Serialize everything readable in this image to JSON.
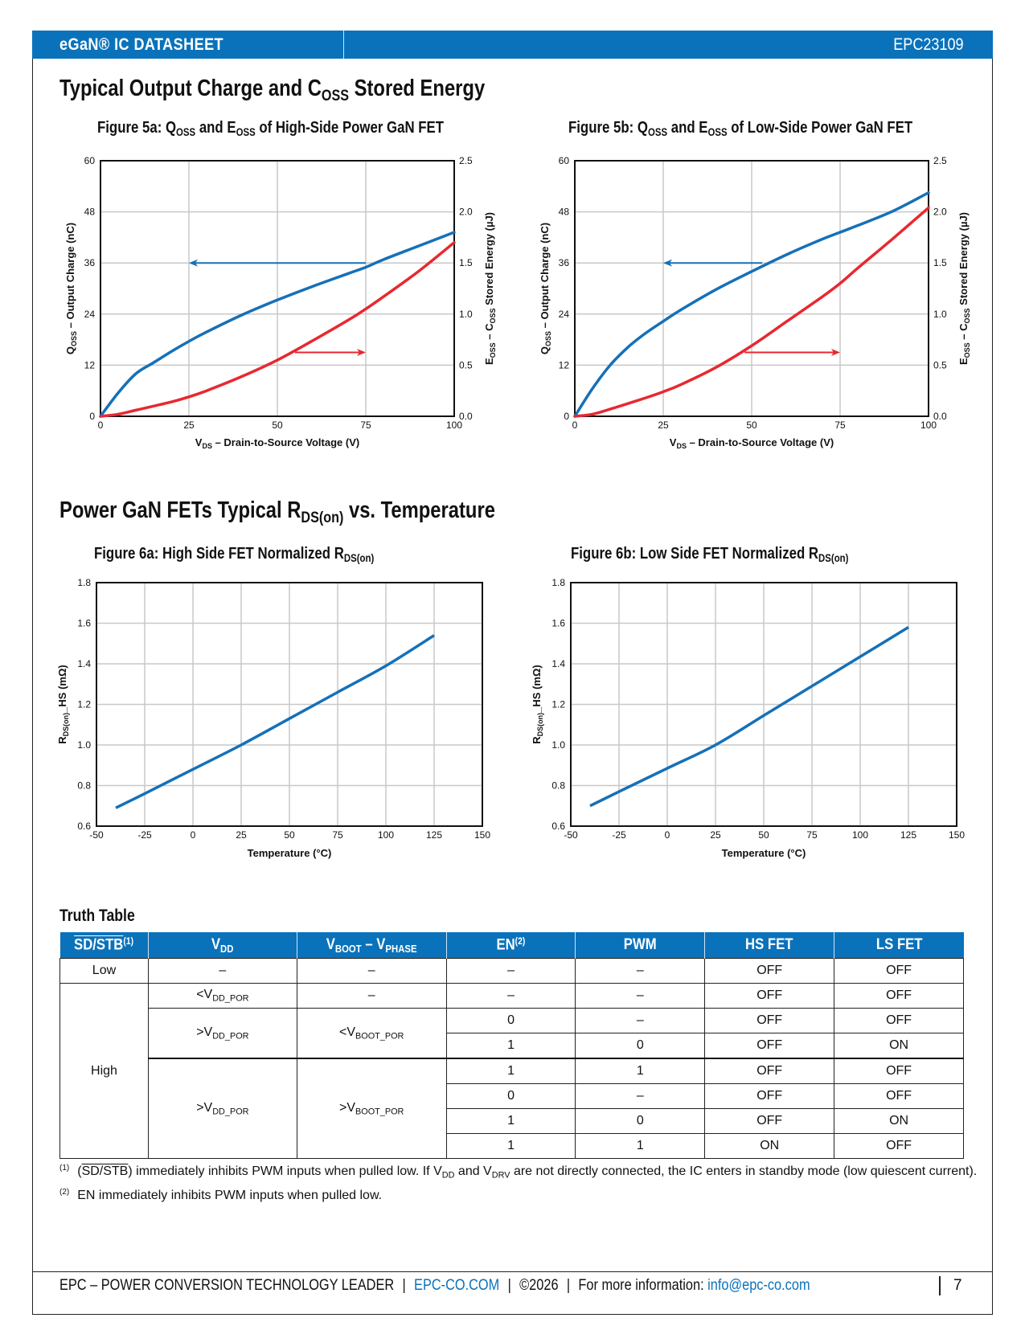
{
  "header": {
    "left": "eGaN® IC DATASHEET",
    "right": "EPC23109",
    "color": "#0a72bb"
  },
  "section1": {
    "title_pre": "Typical Output Charge and C",
    "title_sub": "OSS",
    "title_post": " Stored Energy"
  },
  "section2": {
    "title_pre": "Power GaN FETs Typical R",
    "title_sub": "DS(on)",
    "title_post": " vs. Temperature"
  },
  "colors": {
    "qoss": "#1570b8",
    "eoss": "#e8282f",
    "grid": "#c8c8c8"
  },
  "chart_data": [
    {
      "id": "fig5a",
      "type": "line",
      "title": "Figure 5a: QOSS and EOSS of High-Side Power GaN FET",
      "title_parts": {
        "a": "Figure 5a: Q",
        "b": "OSS",
        "c": " and E",
        "d": "OSS",
        "e": " of High-Side Power GaN FET"
      },
      "xlabel": "VDS – Drain-to-Source Voltage (V)",
      "ylabel": "QOSS – Output Charge (nC)",
      "y2label": "EOSS – COSS Stored Energy (µJ)",
      "xlim": [
        0,
        100
      ],
      "ylim": [
        0,
        60
      ],
      "y2lim": [
        0,
        2.5
      ],
      "xticks": [
        "0",
        "25",
        "50",
        "75",
        "100"
      ],
      "yticks": [
        "0",
        "12",
        "24",
        "36",
        "48",
        "60"
      ],
      "y2ticks": [
        "0.0",
        "0.5",
        "1.0",
        "1.5",
        "2.0",
        "2.5"
      ],
      "grid": true,
      "series": [
        {
          "name": "QOSS",
          "axis": "left",
          "x": [
            0,
            5,
            10,
            15,
            20,
            25,
            30,
            40,
            50,
            60,
            70,
            75,
            80,
            90,
            100
          ],
          "y": [
            0,
            5.5,
            10,
            12.6,
            15.2,
            17.6,
            19.8,
            23.8,
            27.3,
            30.5,
            33.5,
            35,
            36.8,
            40,
            43.2
          ]
        },
        {
          "name": "EOSS",
          "axis": "right",
          "x": [
            0,
            5,
            10,
            20,
            25,
            30,
            40,
            50,
            60,
            70,
            75,
            80,
            90,
            100
          ],
          "y": [
            0,
            0.02,
            0.06,
            0.14,
            0.19,
            0.25,
            0.39,
            0.55,
            0.74,
            0.94,
            1.05,
            1.17,
            1.42,
            1.7
          ]
        }
      ],
      "annotations": [
        {
          "type": "arrow-left",
          "series": "QOSS",
          "from_x": 75,
          "to_x": 25,
          "y": 36
        },
        {
          "type": "arrow-right",
          "series": "EOSS",
          "from_x": 55,
          "to_x": 75,
          "y2": 0.625
        }
      ]
    },
    {
      "id": "fig5b",
      "type": "line",
      "title": "Figure 5b: QOSS and EOSS of Low-Side Power GaN FET",
      "title_parts": {
        "a": "Figure 5b: Q",
        "b": "OSS",
        "c": " and E",
        "d": "OSS",
        "e": " of Low-Side Power GaN FET"
      },
      "xlabel": "VDS – Drain-to-Source Voltage (V)",
      "ylabel": "QOSS – Output Charge (nC)",
      "y2label": "EOSS – COSS Stored Energy (µJ)",
      "xlim": [
        0,
        100
      ],
      "ylim": [
        0,
        60
      ],
      "y2lim": [
        0,
        2.5
      ],
      "xticks": [
        "0",
        "25",
        "50",
        "75",
        "100"
      ],
      "yticks": [
        "0",
        "12",
        "24",
        "36",
        "48",
        "60"
      ],
      "y2ticks": [
        "0.0",
        "0.5",
        "1.0",
        "1.5",
        "2.0",
        "2.5"
      ],
      "grid": true,
      "series": [
        {
          "name": "QOSS",
          "axis": "left",
          "x": [
            0,
            5,
            10,
            15,
            20,
            25,
            30,
            40,
            50,
            60,
            70,
            75,
            80,
            90,
            100
          ],
          "y": [
            0,
            6.5,
            12,
            16.2,
            19.5,
            22.3,
            25,
            29.8,
            34,
            38,
            41.6,
            43.2,
            44.8,
            48.2,
            52.5
          ]
        },
        {
          "name": "EOSS",
          "axis": "right",
          "x": [
            0,
            5,
            10,
            20,
            25,
            30,
            40,
            50,
            60,
            70,
            75,
            80,
            90,
            100
          ],
          "y": [
            0,
            0.02,
            0.07,
            0.18,
            0.24,
            0.31,
            0.48,
            0.69,
            0.93,
            1.17,
            1.3,
            1.45,
            1.74,
            2.04
          ]
        }
      ],
      "annotations": [
        {
          "type": "arrow-left",
          "series": "QOSS",
          "from_x": 53,
          "to_x": 25,
          "y": 36
        },
        {
          "type": "arrow-right",
          "series": "EOSS",
          "from_x": 48,
          "to_x": 75,
          "y2": 0.625
        }
      ]
    },
    {
      "id": "fig6a",
      "type": "line",
      "title": "Figure 6a: High Side FET Normalized RDS(on)",
      "title_parts": {
        "a": "Figure 6a: High Side FET Normalized R",
        "b": "DS(on)"
      },
      "xlabel": "Temperature (°C)",
      "ylabel": "RDS(on)_HS (mΩ)",
      "xlim": [
        -50,
        150
      ],
      "ylim": [
        0.6,
        1.8
      ],
      "xticks": [
        "-50",
        "-25",
        "0",
        "25",
        "50",
        "75",
        "100",
        "125",
        "150"
      ],
      "yticks": [
        "0.6",
        "0.8",
        "1.0",
        "1.2",
        "1.4",
        "1.6",
        "1.8"
      ],
      "grid": true,
      "series": [
        {
          "name": "RDS(on)",
          "x": [
            -40,
            -25,
            0,
            25,
            50,
            75,
            100,
            125
          ],
          "y": [
            0.69,
            0.76,
            0.88,
            1.0,
            1.13,
            1.26,
            1.39,
            1.54
          ]
        }
      ]
    },
    {
      "id": "fig6b",
      "type": "line",
      "title": "Figure 6b: Low Side FET Normalized RDS(on)",
      "title_parts": {
        "a": "Figure 6b: Low Side FET Normalized R",
        "b": "DS(on)"
      },
      "xlabel": "Temperature (°C)",
      "ylabel": "RDS(on)_HS (mΩ)",
      "xlim": [
        -50,
        150
      ],
      "ylim": [
        0.6,
        1.8
      ],
      "xticks": [
        "-50",
        "-25",
        "0",
        "25",
        "50",
        "75",
        "100",
        "125",
        "150"
      ],
      "yticks": [
        "0.6",
        "0.8",
        "1.0",
        "1.2",
        "1.4",
        "1.6",
        "1.8"
      ],
      "grid": true,
      "series": [
        {
          "name": "RDS(on)",
          "x": [
            -40,
            -25,
            0,
            25,
            50,
            75,
            100,
            125
          ],
          "y": [
            0.7,
            0.77,
            0.885,
            1.0,
            1.145,
            1.29,
            1.435,
            1.58
          ]
        }
      ]
    }
  ],
  "truth_table": {
    "title": "Truth Table",
    "headers": {
      "sd": "SD/STB",
      "sd_note": "(1)",
      "vdd": "V",
      "vdd_sub": "DD",
      "vboot": "V",
      "vboot_sub": "BOOT",
      "vboot_mid": " – V",
      "vboot_sub2": "PHASE",
      "en": "EN",
      "en_note": "(2)",
      "pwm": "PWM",
      "hs": "HS FET",
      "ls": "LS FET"
    },
    "labels": {
      "low": "Low",
      "high": "High",
      "dash": "–",
      "lt_vdd": "<V",
      "gt_vdd": ">V",
      "vdd_por_sub": "DD_POR",
      "lt_vboot": "<V",
      "gt_vboot": ">V",
      "vboot_por_sub": "BOOT_POR"
    },
    "rows": [
      {
        "en": "–",
        "pwm": "–",
        "hs": "OFF",
        "ls": "OFF"
      },
      {
        "en": "–",
        "pwm": "–",
        "hs": "OFF",
        "ls": "OFF"
      },
      {
        "en": "0",
        "pwm": "–",
        "hs": "OFF",
        "ls": "OFF"
      },
      {
        "en": "1",
        "pwm": "0",
        "hs": "OFF",
        "ls": "ON"
      },
      {
        "en": "1",
        "pwm": "1",
        "hs": "OFF",
        "ls": "OFF"
      },
      {
        "en": "0",
        "pwm": "–",
        "hs": "OFF",
        "ls": "OFF"
      },
      {
        "en": "1",
        "pwm": "0",
        "hs": "OFF",
        "ls": "ON"
      },
      {
        "en": "1",
        "pwm": "1",
        "hs": "ON",
        "ls": "OFF"
      }
    ]
  },
  "footnotes": {
    "n1_mark": "(1)",
    "n1_a": "(",
    "n1_sd": "SD/STB",
    "n1_b": ")  immediately inhibits PWM inputs when pulled low. If V",
    "n1_sub1": "DD",
    "n1_c": " and V",
    "n1_sub2": "DRV",
    "n1_d": " are not directly connected, the IC enters in standby mode (low quiescent current).",
    "n2_mark": "(2)",
    "n2_text": "EN immediately inhibits PWM inputs when pulled low."
  },
  "footer": {
    "tagline": "EPC – POWER CONVERSION TECHNOLOGY LEADER",
    "site": "EPC-CO.COM",
    "copyright": "©2026",
    "info_label": "For more information: ",
    "email": "info@epc-co.com",
    "page": "7",
    "sep": "|"
  }
}
